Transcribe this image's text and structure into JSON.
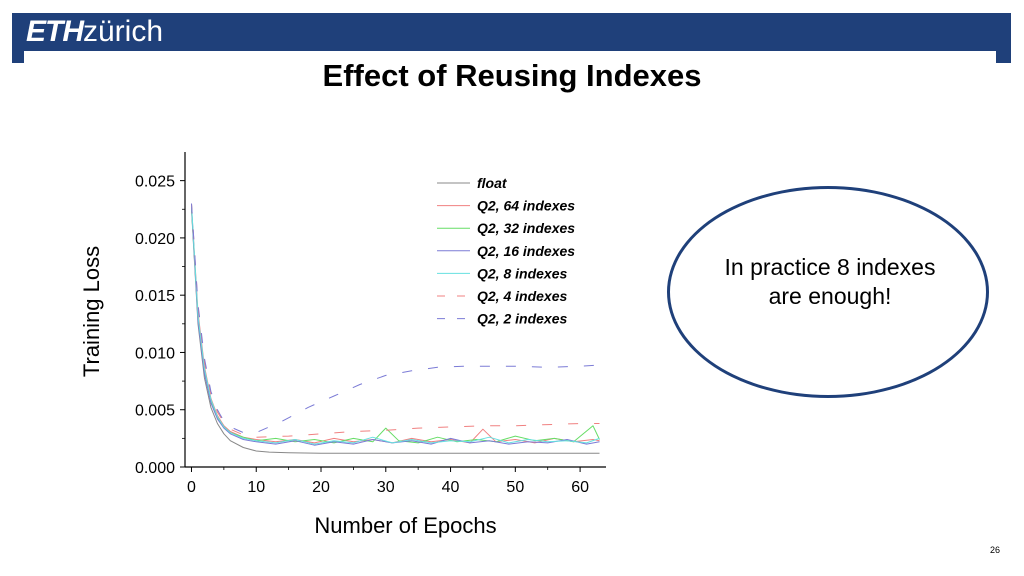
{
  "header": {
    "logo_eth": "ETH",
    "logo_zurich": "zürich"
  },
  "slide": {
    "title": "Effect of Reusing Indexes",
    "callout": "In practice 8 indexes are enough!",
    "page_number": "26"
  },
  "chart_data": {
    "type": "line",
    "xlabel": "Number of Epochs",
    "ylabel": "Training Loss",
    "xlim": [
      -1,
      64
    ],
    "ylim": [
      0,
      0.0275
    ],
    "xticks": [
      0,
      10,
      20,
      30,
      40,
      50,
      60
    ],
    "yticks": [
      0.0,
      0.005,
      0.01,
      0.015,
      0.02,
      0.025
    ],
    "ytick_labels": [
      "0.000",
      "0.005",
      "0.010",
      "0.015",
      "0.020",
      "0.025"
    ],
    "legend_position": "top-right",
    "series": [
      {
        "name": "float",
        "color": "#888888",
        "dash": "solid",
        "x": [
          0,
          1,
          2,
          3,
          4,
          5,
          6,
          8,
          10,
          12,
          15,
          20,
          30,
          40,
          50,
          60,
          63
        ],
        "y": [
          0.0225,
          0.0125,
          0.0078,
          0.0052,
          0.0038,
          0.0029,
          0.0023,
          0.0017,
          0.0014,
          0.0013,
          0.00125,
          0.0012,
          0.0012,
          0.0012,
          0.0012,
          0.0012,
          0.0012
        ]
      },
      {
        "name": "Q2, 64 indexes",
        "color": "#f08080",
        "dash": "solid",
        "x": [
          0,
          1,
          2,
          3,
          4,
          5,
          6,
          8,
          10,
          13,
          16,
          19,
          22,
          25,
          28,
          31,
          34,
          37,
          40,
          43,
          45,
          47,
          50,
          53,
          56,
          59,
          62,
          63
        ],
        "y": [
          0.0228,
          0.0135,
          0.0088,
          0.006,
          0.0045,
          0.0036,
          0.0031,
          0.0026,
          0.0024,
          0.0022,
          0.0024,
          0.0021,
          0.0025,
          0.0022,
          0.0024,
          0.0021,
          0.0025,
          0.0022,
          0.0024,
          0.0021,
          0.0033,
          0.0022,
          0.0024,
          0.0021,
          0.0025,
          0.0022,
          0.0024,
          0.0023
        ]
      },
      {
        "name": "Q2, 32 indexes",
        "color": "#66dd66",
        "dash": "solid",
        "x": [
          0,
          1,
          2,
          3,
          4,
          5,
          6,
          8,
          10,
          13,
          16,
          19,
          22,
          25,
          28,
          30,
          32,
          35,
          38,
          41,
          44,
          47,
          50,
          53,
          56,
          59,
          62,
          63
        ],
        "y": [
          0.0226,
          0.013,
          0.0085,
          0.0058,
          0.0043,
          0.0035,
          0.003,
          0.0026,
          0.0023,
          0.0025,
          0.0022,
          0.0024,
          0.0021,
          0.0025,
          0.0022,
          0.0034,
          0.0023,
          0.0021,
          0.0026,
          0.0022,
          0.0024,
          0.0022,
          0.0027,
          0.0023,
          0.0025,
          0.0022,
          0.0036,
          0.0024
        ]
      },
      {
        "name": "Q2, 16 indexes",
        "color": "#7b7bd6",
        "dash": "solid",
        "x": [
          0,
          1,
          2,
          3,
          4,
          5,
          6,
          8,
          10,
          13,
          16,
          19,
          22,
          25,
          28,
          31,
          34,
          37,
          40,
          43,
          46,
          49,
          52,
          55,
          58,
          61,
          63
        ],
        "y": [
          0.0227,
          0.0128,
          0.0082,
          0.0056,
          0.0042,
          0.0034,
          0.0029,
          0.0024,
          0.0022,
          0.002,
          0.0023,
          0.0019,
          0.0022,
          0.002,
          0.0024,
          0.0021,
          0.0023,
          0.002,
          0.0025,
          0.0021,
          0.0023,
          0.002,
          0.0022,
          0.0021,
          0.0024,
          0.002,
          0.0022
        ]
      },
      {
        "name": "Q2, 8 indexes",
        "color": "#66e0e0",
        "dash": "solid",
        "x": [
          0,
          1,
          2,
          3,
          4,
          5,
          6,
          8,
          10,
          13,
          16,
          19,
          22,
          25,
          28,
          31,
          34,
          37,
          40,
          43,
          46,
          49,
          52,
          55,
          58,
          61,
          63
        ],
        "y": [
          0.0229,
          0.0132,
          0.0086,
          0.0059,
          0.0044,
          0.0035,
          0.003,
          0.0025,
          0.0023,
          0.0021,
          0.0024,
          0.002,
          0.0023,
          0.0021,
          0.0026,
          0.0021,
          0.0024,
          0.0021,
          0.0023,
          0.0022,
          0.0026,
          0.0021,
          0.0024,
          0.0022,
          0.0023,
          0.0021,
          0.0025
        ]
      },
      {
        "name": "Q2, 4 indexes",
        "color": "#f08080",
        "dash": "dashed",
        "x": [
          0,
          1,
          2,
          3,
          4,
          5,
          6,
          8,
          10,
          15,
          20,
          25,
          30,
          35,
          40,
          45,
          50,
          55,
          60,
          63
        ],
        "y": [
          0.023,
          0.014,
          0.0092,
          0.0064,
          0.0048,
          0.0039,
          0.0033,
          0.0028,
          0.0026,
          0.0027,
          0.0029,
          0.0031,
          0.0032,
          0.0034,
          0.0035,
          0.0036,
          0.0036,
          0.0037,
          0.0038,
          0.0038
        ]
      },
      {
        "name": "Q2, 2 indexes",
        "color": "#7b7bd6",
        "dash": "dashed",
        "x": [
          0,
          1,
          2,
          3,
          4,
          5,
          6,
          8,
          10,
          14,
          18,
          22,
          26,
          30,
          34,
          38,
          42,
          46,
          50,
          55,
          60,
          63
        ],
        "y": [
          0.023,
          0.0142,
          0.0095,
          0.0066,
          0.005,
          0.004,
          0.0035,
          0.003,
          0.003,
          0.004,
          0.0052,
          0.0062,
          0.0072,
          0.008,
          0.0084,
          0.0087,
          0.0088,
          0.0088,
          0.0088,
          0.0087,
          0.0088,
          0.0089
        ]
      }
    ]
  }
}
